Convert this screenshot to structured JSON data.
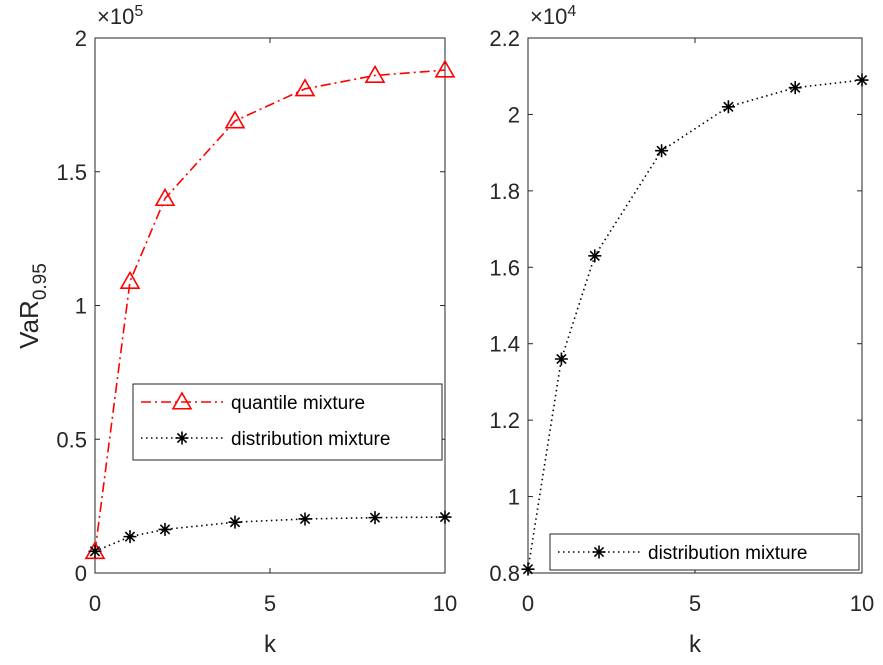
{
  "chart_data": [
    {
      "type": "line",
      "xlabel": "k",
      "ylabel": "VaR",
      "ylabel_sub": "0.95",
      "exponent_base": "×10",
      "exponent_power": "5",
      "xlim": [
        0,
        10
      ],
      "ylim": [
        0,
        2
      ],
      "xticks": [
        "0",
        "5",
        "10"
      ],
      "yticks": [
        "0",
        "0.5",
        "1",
        "1.5",
        "2"
      ],
      "legend_position": "center-right",
      "x": [
        0,
        1,
        2,
        4,
        6,
        8,
        10
      ],
      "series": [
        {
          "name": "quantile mixture",
          "values": [
            0.08,
            1.09,
            1.4,
            1.69,
            1.81,
            1.86,
            1.88
          ],
          "color": "#ff0000",
          "marker": "triangle",
          "linestyle": "dashdot"
        },
        {
          "name": "distribution mixture",
          "values": [
            0.081,
            0.136,
            0.163,
            0.19,
            0.202,
            0.207,
            0.209
          ],
          "color": "#000000",
          "marker": "asterisk",
          "linestyle": "dotted"
        }
      ]
    },
    {
      "type": "line",
      "xlabel": "k",
      "exponent_base": "×10",
      "exponent_power": "4",
      "xlim": [
        0,
        10
      ],
      "ylim": [
        0.8,
        2.2
      ],
      "xticks": [
        "0",
        "5",
        "10"
      ],
      "yticks": [
        "0.8",
        "1",
        "1.2",
        "1.4",
        "1.6",
        "1.8",
        "2",
        "2.2"
      ],
      "legend_position": "bottom-right",
      "x": [
        0,
        1,
        2,
        4,
        6,
        8,
        10
      ],
      "series": [
        {
          "name": "distribution mixture",
          "values": [
            0.81,
            1.36,
            1.63,
            1.905,
            2.02,
            2.07,
            2.09
          ],
          "color": "#000000",
          "marker": "asterisk",
          "linestyle": "dotted"
        }
      ]
    }
  ]
}
